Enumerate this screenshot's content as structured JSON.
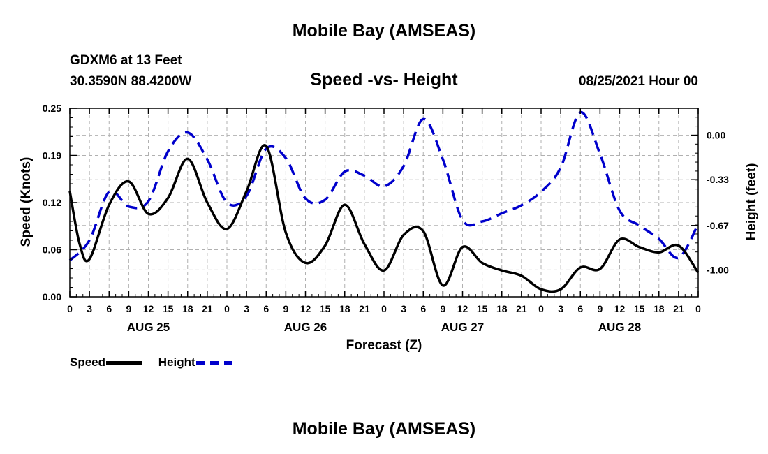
{
  "header": {
    "title_top": "Mobile Bay (AMSEAS)",
    "title_bottom": "Mobile Bay (AMSEAS)",
    "station": "GDXM6 at 13 Feet",
    "coords": "30.3590N  88.4200W",
    "chart_title": "Speed -vs- Height",
    "issue_time": "08/25/2021 Hour 00"
  },
  "legend": {
    "speed_label": "Speed",
    "height_label": "Height"
  },
  "colors": {
    "speed": "#000000",
    "height": "#0000cc",
    "grid": "#b0b0b0"
  },
  "chart_data": {
    "type": "line",
    "title": "Speed -vs- Height",
    "xlabel": "Forecast (Z)",
    "ylabel_left": "Speed (Knots)",
    "ylabel_right": "Height (feet)",
    "xlim": [
      0,
      96
    ],
    "ylim_left": [
      0,
      0.25
    ],
    "ylim_right": [
      -1.2,
      0.2
    ],
    "left_ticks": [
      0,
      0.0625,
      0.125,
      0.1875,
      0.25
    ],
    "left_tick_labels": [
      "0.00",
      "0.06",
      "0.12",
      "0.19",
      "0.25"
    ],
    "right_ticks": [
      -1.0,
      -0.67,
      -0.33,
      0.0
    ],
    "right_tick_labels": [
      "-1.00",
      "-0.67",
      "-0.33",
      "0.00"
    ],
    "x_ticks": [
      0,
      3,
      6,
      9,
      12,
      15,
      18,
      21,
      24,
      27,
      30,
      33,
      36,
      39,
      42,
      45,
      48,
      51,
      54,
      57,
      60,
      63,
      66,
      69,
      72,
      75,
      78,
      81,
      84,
      87,
      90,
      93,
      96
    ],
    "x_tick_labels": [
      "0",
      "3",
      "6",
      "9",
      "12",
      "15",
      "18",
      "21",
      "0",
      "3",
      "6",
      "9",
      "12",
      "15",
      "18",
      "21",
      "0",
      "3",
      "6",
      "9",
      "12",
      "15",
      "18",
      "21",
      "0",
      "3",
      "6",
      "9",
      "12",
      "15",
      "18",
      "21",
      "0"
    ],
    "day_labels": [
      {
        "x": 12,
        "label": "AUG 25"
      },
      {
        "x": 36,
        "label": "AUG 26"
      },
      {
        "x": 60,
        "label": "AUG 27"
      },
      {
        "x": 84,
        "label": "AUG 28"
      }
    ],
    "series": [
      {
        "name": "Speed",
        "axis": "left",
        "style": "solid",
        "x": [
          0,
          1.5,
          3,
          6,
          9,
          12,
          15,
          18,
          21,
          24,
          27,
          30,
          33,
          36,
          39,
          42,
          45,
          48,
          51,
          54,
          57,
          60,
          63,
          66,
          69,
          72,
          75,
          78,
          81,
          84,
          87,
          90,
          93,
          96
        ],
        "values": [
          0.14,
          0.07,
          0.05,
          0.122,
          0.153,
          0.11,
          0.131,
          0.183,
          0.125,
          0.09,
          0.14,
          0.2,
          0.085,
          0.045,
          0.068,
          0.122,
          0.07,
          0.035,
          0.082,
          0.087,
          0.015,
          0.066,
          0.045,
          0.035,
          0.028,
          0.01,
          0.01,
          0.039,
          0.037,
          0.076,
          0.066,
          0.059,
          0.068,
          0.032
        ]
      },
      {
        "name": "Height",
        "axis": "right",
        "style": "dashed",
        "x": [
          0,
          3,
          6,
          9,
          12,
          15,
          18,
          21,
          24,
          27,
          30,
          33,
          36,
          39,
          42,
          45,
          48,
          51,
          54,
          57,
          60,
          63,
          66,
          69,
          72,
          75,
          78,
          81,
          84,
          87,
          90,
          93,
          96
        ],
        "values": [
          -0.93,
          -0.78,
          -0.42,
          -0.53,
          -0.49,
          -0.12,
          0.02,
          -0.18,
          -0.5,
          -0.45,
          -0.1,
          -0.17,
          -0.47,
          -0.48,
          -0.27,
          -0.3,
          -0.38,
          -0.23,
          0.12,
          -0.18,
          -0.63,
          -0.64,
          -0.58,
          -0.52,
          -0.42,
          -0.24,
          0.17,
          -0.14,
          -0.56,
          -0.67,
          -0.77,
          -0.91,
          -0.66
        ]
      }
    ]
  }
}
